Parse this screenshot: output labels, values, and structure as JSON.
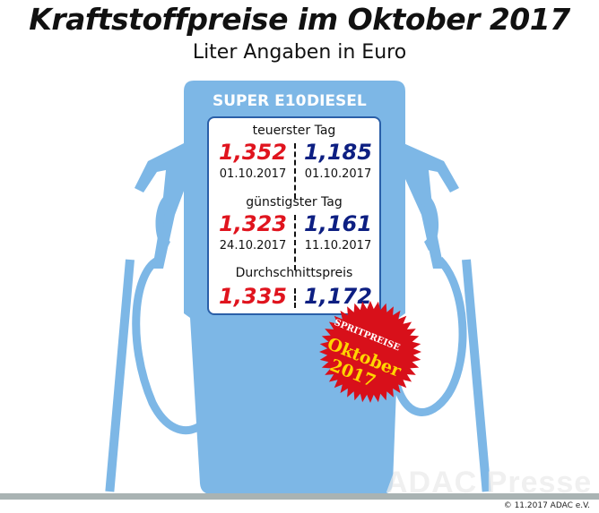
{
  "title": "Kraftstoffpreise im Oktober 2017",
  "subtitle": "Liter Angaben in Euro",
  "colors": {
    "pump": "#7db7e6",
    "super": "#e0141e",
    "diesel": "#0d1f82",
    "seal": "#d8101a",
    "seal_text": "#ffd600"
  },
  "header": {
    "super": "SUPER E10",
    "diesel": "DIESEL"
  },
  "rows": [
    {
      "label": "teuerster Tag",
      "super_price": "1,352",
      "super_date": "01.10.2017",
      "diesel_price": "1,185",
      "diesel_date": "01.10.2017"
    },
    {
      "label": "günstigster Tag",
      "super_price": "1,323",
      "super_date": "24.10.2017",
      "diesel_price": "1,161",
      "diesel_date": "11.10.2017"
    },
    {
      "label": "Durchschnittspreis",
      "super_price": "1,335",
      "diesel_price": "1,172"
    }
  ],
  "seal": {
    "line1": "SPRITPREISE",
    "line2": "Oktober",
    "line3": "2017"
  },
  "watermark": "ADAC Presse",
  "copyright": "© 11.2017 ADAC e.V."
}
